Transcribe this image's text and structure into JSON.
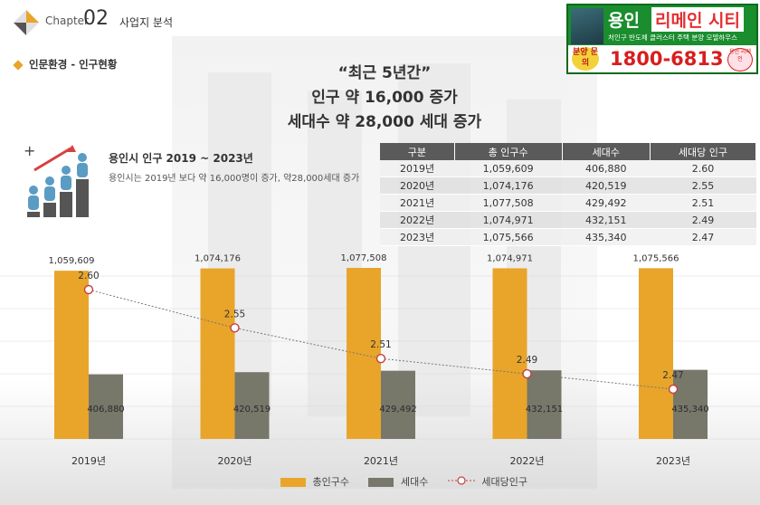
{
  "header": {
    "chapter_label": "Chapter",
    "chapter_number": "02",
    "chapter_title": "사업지 분석"
  },
  "section": {
    "title": "인문환경 - 인구현황"
  },
  "ad": {
    "title_part1": "용인",
    "title_part2": "리메인 시티",
    "subtitle": "처인구 반도체 클러스터 주택 분양 모델하우스",
    "sale_label": "분양 문의",
    "phone": "1800-6813",
    "logo_text": "용인 리메인"
  },
  "headline": {
    "line1": "“최근 5년간”",
    "line2": "인구 약 16,000 증가",
    "line3": "세대수  약 28,000 세대 증가"
  },
  "info": {
    "title": "용인시 인구 2019 ~ 2023년",
    "description": "용인시는 2019년 보다 약 16,000명이 증가, 약28,000세대 증가"
  },
  "table": {
    "headers": [
      "구분",
      "총 인구수",
      "세대수",
      "세대당 인구"
    ],
    "rows": [
      [
        "2019년",
        "1,059,609",
        "406,880",
        "2.60"
      ],
      [
        "2020년",
        "1,074,176",
        "420,519",
        "2.55"
      ],
      [
        "2021년",
        "1,077,508",
        "429,492",
        "2.51"
      ],
      [
        "2022년",
        "1,074,971",
        "432,151",
        "2.49"
      ],
      [
        "2023년",
        "1,075,566",
        "435,340",
        "2.47"
      ]
    ]
  },
  "colors": {
    "population_bar": "#e8a52a",
    "household_bar": "#77776a",
    "ratio_line": "#c44040",
    "accent": "#e8a52a"
  },
  "chart_data": {
    "type": "bar",
    "categories": [
      "2019년",
      "2020년",
      "2021년",
      "2022년",
      "2023년"
    ],
    "series": [
      {
        "name": "총인구수",
        "type": "bar",
        "values": [
          1059609,
          1074176,
          1077508,
          1074971,
          1075566
        ],
        "labels": [
          "1,059,609",
          "1,074,176",
          "1,077,508",
          "1,074,971",
          "1,075,566"
        ]
      },
      {
        "name": "세대수",
        "type": "bar",
        "values": [
          406880,
          420519,
          429492,
          432151,
          435340
        ],
        "labels": [
          "406,880",
          "420,519",
          "429,492",
          "432,151",
          "435,340"
        ]
      },
      {
        "name": "세대당인구",
        "type": "line",
        "values": [
          2.6,
          2.55,
          2.51,
          2.49,
          2.47
        ],
        "labels": [
          "2.60",
          "2.55",
          "2.51",
          "2.49",
          "2.47"
        ]
      }
    ],
    "legend_position": "bottom",
    "grid": false
  }
}
